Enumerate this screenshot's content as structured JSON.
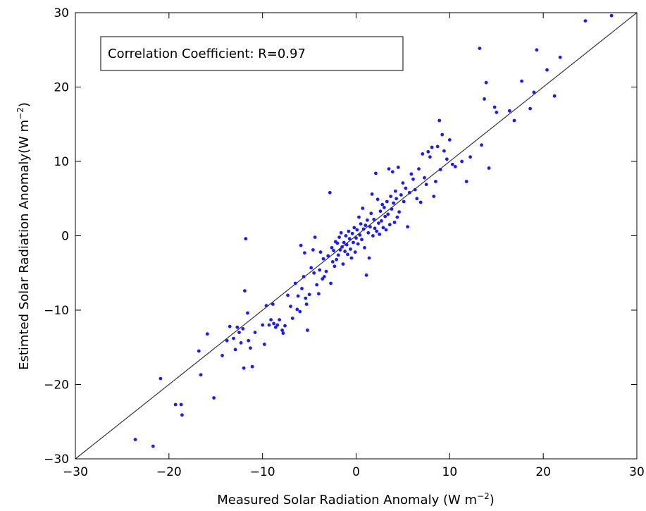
{
  "chart_data": {
    "type": "scatter",
    "title": "",
    "xlabel": "Measured Solar Radiation Anomaly (W m",
    "xlabel_unit_exponent": "−2",
    "xlabel_close": ")",
    "ylabel": "Estimted Solar Radiation Anomaly(W m",
    "ylabel_unit_exponent": "−2",
    "ylabel_close": ")",
    "xlim": [
      -30,
      30
    ],
    "ylim": [
      -30,
      30
    ],
    "xticks": [
      -30,
      -20,
      -10,
      0,
      10,
      20,
      30
    ],
    "yticks": [
      -30,
      -20,
      -10,
      0,
      10,
      20,
      30
    ],
    "xtick_labels": [
      "−30",
      "−20",
      "−10",
      "0",
      "10",
      "20",
      "30"
    ],
    "ytick_labels": [
      "−30",
      "−20",
      "−10",
      "0",
      "10",
      "20",
      "30"
    ],
    "grid": false,
    "annotation": "Correlation Coefficient: R=0.97",
    "marker_color": "#1a1aff",
    "reference_line": {
      "from": [
        -30,
        -30
      ],
      "to": [
        30,
        30
      ],
      "color": "#333333"
    },
    "points": [
      [
        -23.6,
        -27.4
      ],
      [
        -21.7,
        -28.3
      ],
      [
        -20.9,
        -19.2
      ],
      [
        -19.3,
        -22.7
      ],
      [
        -18.7,
        -22.7
      ],
      [
        -18.6,
        -24.1
      ],
      [
        -16.8,
        -15.5
      ],
      [
        -16.6,
        -18.7
      ],
      [
        -15.9,
        -13.2
      ],
      [
        -15.2,
        -21.8
      ],
      [
        -14.3,
        -16.1
      ],
      [
        -13.8,
        -14.1
      ],
      [
        -13.5,
        -12.2
      ],
      [
        -13.1,
        -13.8
      ],
      [
        -12.9,
        -15.3
      ],
      [
        -12.7,
        -12.3
      ],
      [
        -12.5,
        -13.0
      ],
      [
        -12.3,
        -14.4
      ],
      [
        -12.1,
        -12.5
      ],
      [
        -12.0,
        -17.8
      ],
      [
        -11.9,
        -7.4
      ],
      [
        -11.8,
        -0.4
      ],
      [
        -11.6,
        -10.4
      ],
      [
        -11.5,
        -14.1
      ],
      [
        -11.3,
        -15.1
      ],
      [
        -11.1,
        -17.6
      ],
      [
        -10.8,
        -13.0
      ],
      [
        -10.0,
        -12.0
      ],
      [
        -9.8,
        -14.6
      ],
      [
        -9.6,
        -9.4
      ],
      [
        -9.3,
        -12.0
      ],
      [
        -9.1,
        -11.3
      ],
      [
        -8.9,
        -9.2
      ],
      [
        -8.8,
        -11.8
      ],
      [
        -8.6,
        -12.3
      ],
      [
        -8.4,
        -12.0
      ],
      [
        -8.2,
        -11.3
      ],
      [
        -7.9,
        -12.7
      ],
      [
        -7.8,
        -13.1
      ],
      [
        -7.6,
        -12.1
      ],
      [
        -7.3,
        -8.0
      ],
      [
        -7.0,
        -9.5
      ],
      [
        -6.8,
        -11.1
      ],
      [
        -6.5,
        -6.4
      ],
      [
        -6.3,
        -9.9
      ],
      [
        -6.2,
        -8.1
      ],
      [
        -6.0,
        -10.2
      ],
      [
        -5.9,
        -1.3
      ],
      [
        -5.8,
        -7.1
      ],
      [
        -5.6,
        -5.5
      ],
      [
        -5.5,
        -2.3
      ],
      [
        -5.4,
        -8.4
      ],
      [
        -5.3,
        -9.2
      ],
      [
        -5.2,
        -12.7
      ],
      [
        -5.0,
        -7.9
      ],
      [
        -4.8,
        -4.3
      ],
      [
        -4.6,
        -1.9
      ],
      [
        -4.5,
        -5.0
      ],
      [
        -4.4,
        -0.2
      ],
      [
        -4.2,
        -6.6
      ],
      [
        -4.0,
        -7.8
      ],
      [
        -3.9,
        -4.6
      ],
      [
        -3.8,
        -2.2
      ],
      [
        -3.6,
        -5.8
      ],
      [
        -3.5,
        -3.1
      ],
      [
        -3.4,
        -5.5
      ],
      [
        -3.2,
        -4.8
      ],
      [
        -3.0,
        -2.7
      ],
      [
        -2.8,
        5.8
      ],
      [
        -2.7,
        -6.4
      ],
      [
        -2.6,
        -1.6
      ],
      [
        -2.5,
        -3.5
      ],
      [
        -2.4,
        -2.0
      ],
      [
        -2.3,
        -4.1
      ],
      [
        -2.2,
        -0.8
      ],
      [
        -2.1,
        -3.2
      ],
      [
        -2.0,
        -1.0
      ],
      [
        -1.9,
        -2.6
      ],
      [
        -1.8,
        -0.2
      ],
      [
        -1.7,
        -1.9
      ],
      [
        -1.6,
        0.4
      ],
      [
        -1.5,
        -1.5
      ],
      [
        -1.4,
        -3.8
      ],
      [
        -1.3,
        -0.9
      ],
      [
        -1.2,
        -2.1
      ],
      [
        -1.1,
        0.0
      ],
      [
        -1.0,
        -1.2
      ],
      [
        -0.9,
        -2.5
      ],
      [
        -0.8,
        0.6
      ],
      [
        -0.7,
        -0.4
      ],
      [
        -0.6,
        -1.8
      ],
      [
        -0.5,
        -3.0
      ],
      [
        -0.4,
        0.3
      ],
      [
        -0.3,
        -0.9
      ],
      [
        -0.2,
        1.1
      ],
      [
        -0.1,
        -2.2
      ],
      [
        0.0,
        -0.3
      ],
      [
        0.1,
        0.8
      ],
      [
        0.2,
        -1.1
      ],
      [
        0.3,
        2.5
      ],
      [
        0.4,
        0.1
      ],
      [
        0.5,
        1.6
      ],
      [
        0.6,
        -0.5
      ],
      [
        0.7,
        3.7
      ],
      [
        0.8,
        0.9
      ],
      [
        0.9,
        -1.6
      ],
      [
        1.0,
        1.4
      ],
      [
        1.1,
        -5.3
      ],
      [
        1.2,
        2.1
      ],
      [
        1.3,
        0.4
      ],
      [
        1.4,
        -3.0
      ],
      [
        1.5,
        1.2
      ],
      [
        1.6,
        3.0
      ],
      [
        1.7,
        5.6
      ],
      [
        1.8,
        0.0
      ],
      [
        1.9,
        2.2
      ],
      [
        2.0,
        1.0
      ],
      [
        2.1,
        8.4
      ],
      [
        2.2,
        0.6
      ],
      [
        2.3,
        4.9
      ],
      [
        2.4,
        1.7
      ],
      [
        2.5,
        0.2
      ],
      [
        2.6,
        3.3
      ],
      [
        2.7,
        2.0
      ],
      [
        2.8,
        4.2
      ],
      [
        2.9,
        1.1
      ],
      [
        3.0,
        3.8
      ],
      [
        3.1,
        2.6
      ],
      [
        3.2,
        0.8
      ],
      [
        3.3,
        4.6
      ],
      [
        3.4,
        2.9
      ],
      [
        3.5,
        9.0
      ],
      [
        3.6,
        1.5
      ],
      [
        3.7,
        5.3
      ],
      [
        3.8,
        3.6
      ],
      [
        3.9,
        8.6
      ],
      [
        4.0,
        4.4
      ],
      [
        4.1,
        1.8
      ],
      [
        4.2,
        6.0
      ],
      [
        4.3,
        5.0
      ],
      [
        4.4,
        2.5
      ],
      [
        4.5,
        9.2
      ],
      [
        4.6,
        3.2
      ],
      [
        4.8,
        5.5
      ],
      [
        5.0,
        7.1
      ],
      [
        5.1,
        4.6
      ],
      [
        5.3,
        6.4
      ],
      [
        5.5,
        1.2
      ],
      [
        5.7,
        5.8
      ],
      [
        5.9,
        8.3
      ],
      [
        6.1,
        7.6
      ],
      [
        6.3,
        6.2
      ],
      [
        6.5,
        5.0
      ],
      [
        6.7,
        9.0
      ],
      [
        6.9,
        4.5
      ],
      [
        7.1,
        11.0
      ],
      [
        7.3,
        7.8
      ],
      [
        7.5,
        6.9
      ],
      [
        7.7,
        11.3
      ],
      [
        7.9,
        10.6
      ],
      [
        8.1,
        11.9
      ],
      [
        8.3,
        5.3
      ],
      [
        8.5,
        7.3
      ],
      [
        8.7,
        12.0
      ],
      [
        8.9,
        15.5
      ],
      [
        9.0,
        8.9
      ],
      [
        9.2,
        13.6
      ],
      [
        9.4,
        11.4
      ],
      [
        9.7,
        10.3
      ],
      [
        10.0,
        12.9
      ],
      [
        10.3,
        9.6
      ],
      [
        10.6,
        9.3
      ],
      [
        11.3,
        10.0
      ],
      [
        11.8,
        7.3
      ],
      [
        12.2,
        10.6
      ],
      [
        13.2,
        25.2
      ],
      [
        13.4,
        12.2
      ],
      [
        13.7,
        18.4
      ],
      [
        13.9,
        20.6
      ],
      [
        14.2,
        9.1
      ],
      [
        14.8,
        17.3
      ],
      [
        15.0,
        16.6
      ],
      [
        16.4,
        16.8
      ],
      [
        16.9,
        15.5
      ],
      [
        17.7,
        20.8
      ],
      [
        18.6,
        17.1
      ],
      [
        19.0,
        19.3
      ],
      [
        19.3,
        25.0
      ],
      [
        20.4,
        22.3
      ],
      [
        21.2,
        18.8
      ],
      [
        21.8,
        24.0
      ],
      [
        24.5,
        28.9
      ],
      [
        27.3,
        29.6
      ]
    ]
  }
}
